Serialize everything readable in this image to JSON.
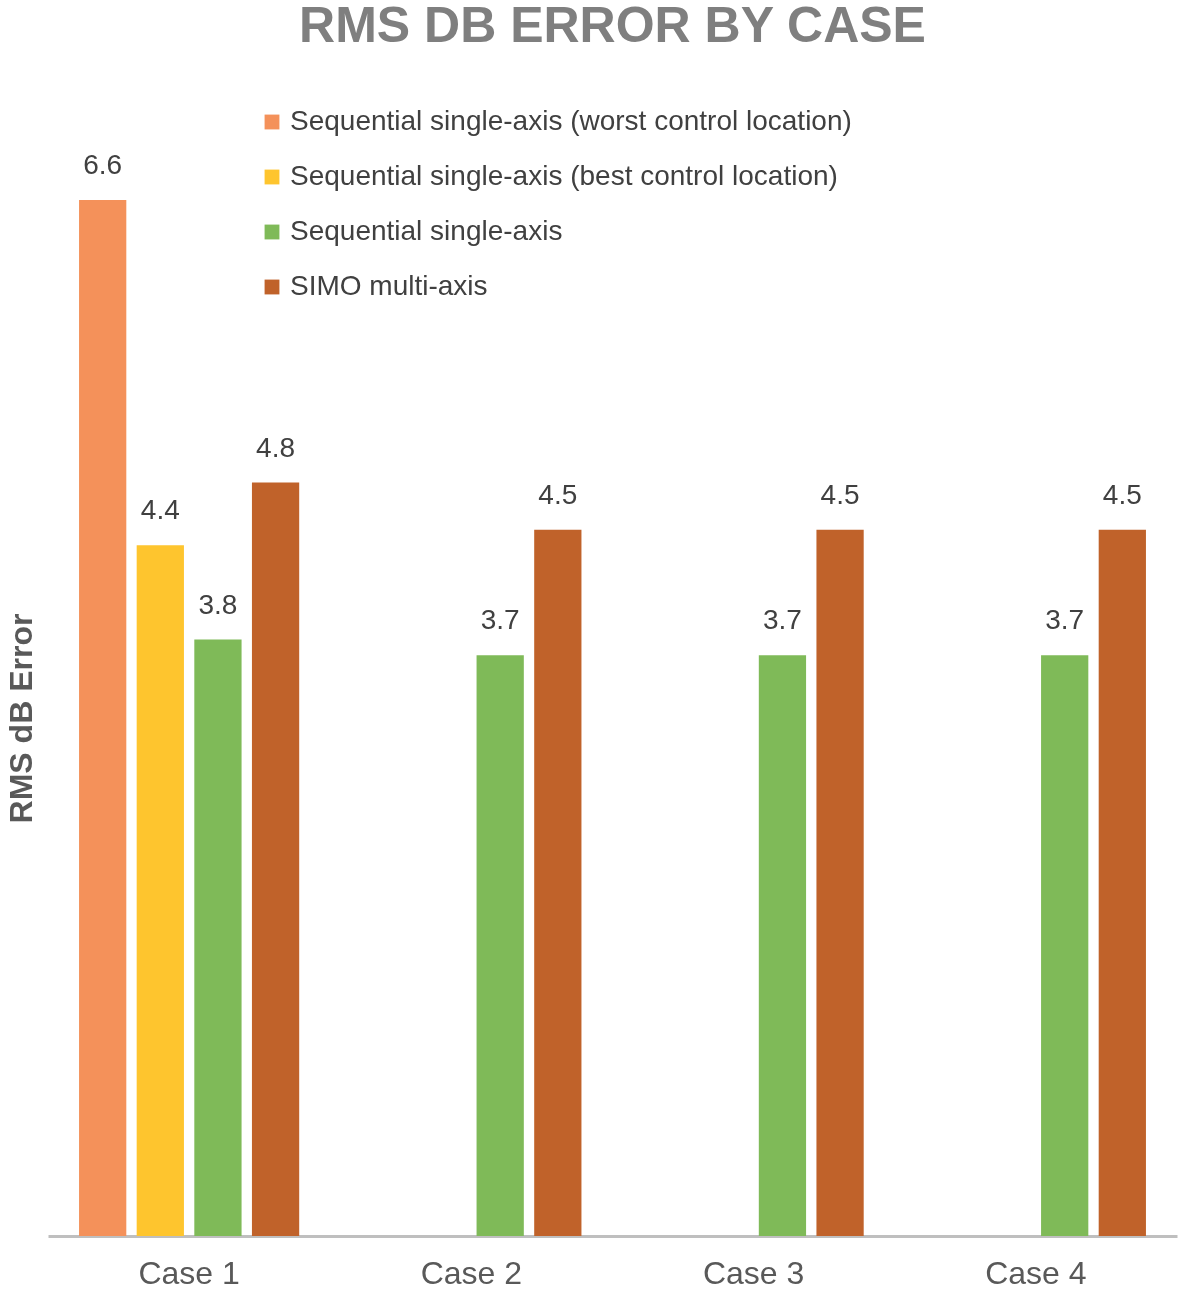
{
  "chart_data": {
    "type": "bar",
    "title": "RMS DB ERROR BY CASE",
    "ylabel": "RMS dB Error",
    "categories": [
      "Case 1",
      "Case 2",
      "Case 3",
      "Case 4"
    ],
    "series": [
      {
        "name": "Sequential single-axis (worst control location)",
        "color": "#f4915a",
        "values": [
          6.6,
          null,
          null,
          null
        ]
      },
      {
        "name": "Sequential single-axis (best control location)",
        "color": "#fec52e",
        "values": [
          4.4,
          null,
          null,
          null
        ]
      },
      {
        "name": "Sequential single-axis",
        "color": "#7fba58",
        "values": [
          3.8,
          3.7,
          3.7,
          3.7
        ]
      },
      {
        "name": "SIMO multi-axis",
        "color": "#c0622a",
        "values": [
          4.8,
          4.5,
          4.5,
          4.5
        ]
      }
    ],
    "data_labels": true,
    "legend": "top",
    "grid": false
  }
}
